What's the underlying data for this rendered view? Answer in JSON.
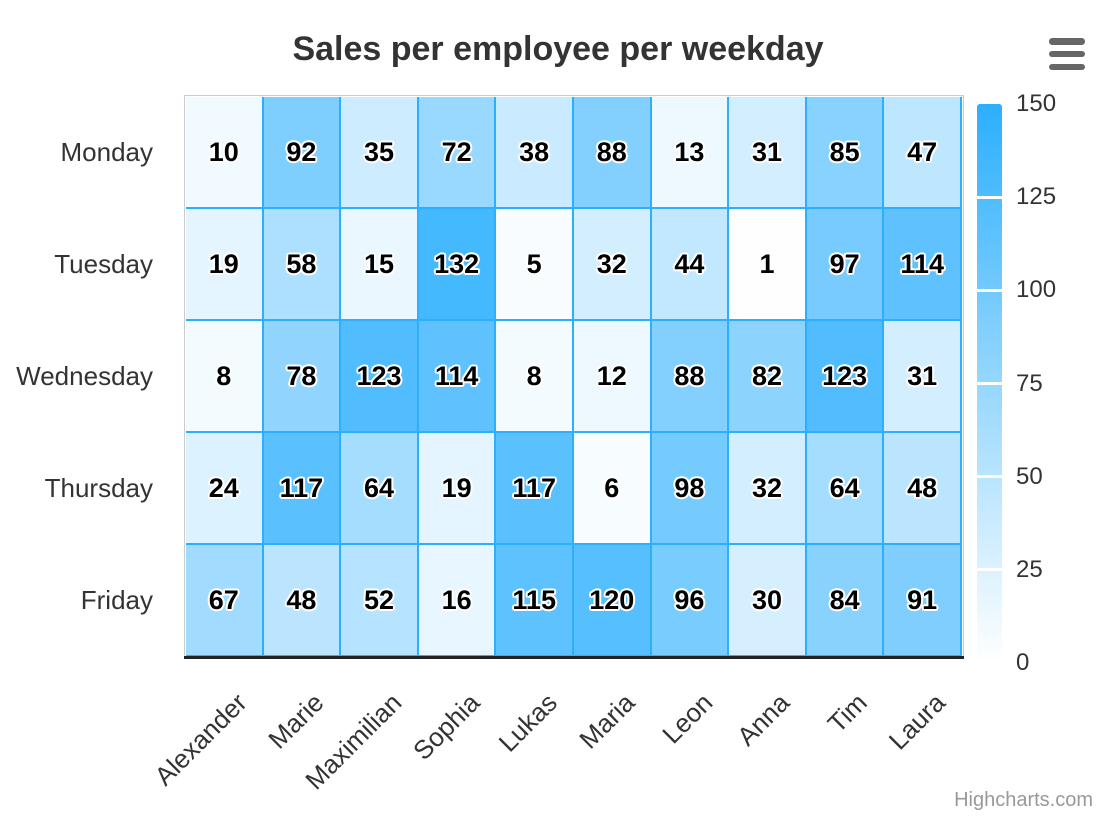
{
  "title": "Sales per employee per weekday",
  "menu": {
    "icon": "hamburger-menu-icon"
  },
  "credits": {
    "label": "Highcharts.com"
  },
  "colors": {
    "accent": "#2caffe",
    "cell_border": "#2caffe",
    "plot_border": "#cccccc",
    "axis_line": "#222222",
    "title_text": "#333333",
    "label_text": "#333333",
    "credits_text": "#999999",
    "menu_icon": "#666666"
  },
  "chart_data": {
    "type": "heatmap",
    "title": "Sales per employee per weekday",
    "x_categories": [
      "Alexander",
      "Marie",
      "Maximilian",
      "Sophia",
      "Lukas",
      "Maria",
      "Leon",
      "Anna",
      "Tim",
      "Laura"
    ],
    "y_categories": [
      "Monday",
      "Tuesday",
      "Wednesday",
      "Thursday",
      "Friday"
    ],
    "rows": [
      [
        10,
        92,
        35,
        72,
        38,
        88,
        13,
        31,
        85,
        47
      ],
      [
        19,
        58,
        15,
        132,
        5,
        32,
        44,
        1,
        97,
        114
      ],
      [
        8,
        78,
        123,
        114,
        8,
        12,
        88,
        82,
        123,
        31
      ],
      [
        24,
        117,
        64,
        19,
        117,
        6,
        98,
        32,
        64,
        48
      ],
      [
        67,
        48,
        52,
        16,
        115,
        120,
        96,
        30,
        84,
        91
      ]
    ],
    "data_labels_enabled": true,
    "x_label_rotation": -45,
    "color_axis": {
      "min": 0,
      "max": 150,
      "tick_labels": [
        150,
        125,
        100,
        75,
        50,
        25,
        0
      ],
      "min_color": "#ffffff",
      "max_color": "#2caffe"
    },
    "legend_position": "right-vertical",
    "grid": "cell-borders"
  }
}
